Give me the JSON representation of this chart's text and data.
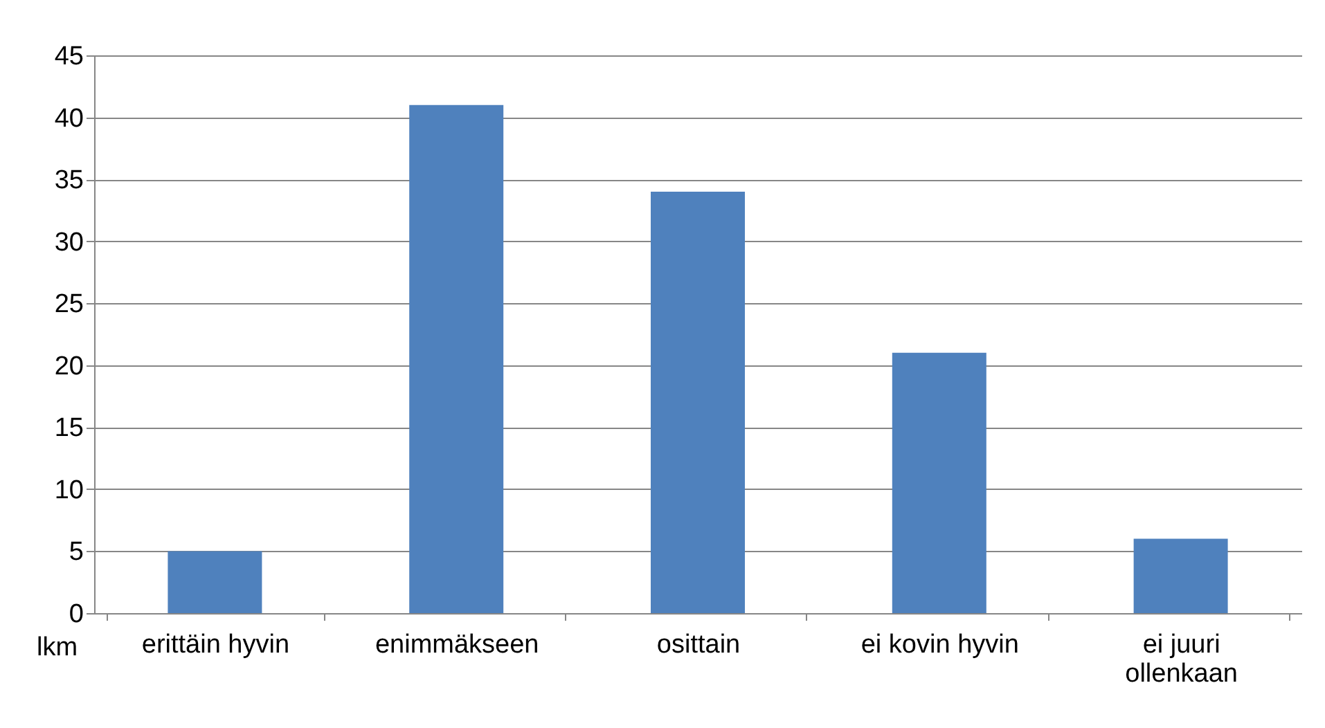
{
  "chart_data": {
    "type": "bar",
    "ylabel": "lkm",
    "categories": [
      "erittäin hyvin",
      "enimmäkseen",
      "osittain",
      "ei kovin hyvin",
      "ei juuri ollenkaan"
    ],
    "values": [
      5,
      41,
      34,
      21,
      6
    ],
    "color": "#4f81bd",
    "ylim": [
      0,
      45
    ],
    "yticks": [
      0,
      5,
      10,
      15,
      20,
      25,
      30,
      35,
      40,
      45
    ],
    "grid": "y"
  }
}
